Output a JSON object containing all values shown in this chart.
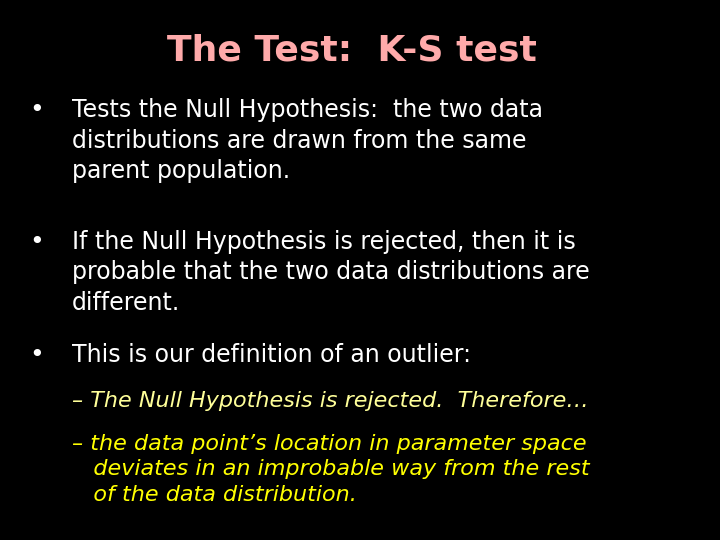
{
  "title": "The Test:  K-S test",
  "title_color": "#ffaaaa",
  "background_color": "#000000",
  "bullet_color": "#ffffff",
  "sub_italic_color1": "#ffff99",
  "sub_italic_color2": "#ffff00",
  "bullet1": "Tests the Null Hypothesis:  the two data\ndistributions are drawn from the same\nparent population.",
  "bullet2": "If the Null Hypothesis is rejected, then it is\nprobable that the two data distributions are\ndifferent.",
  "bullet3": "This is our definition of an outlier:",
  "dash1": "– The Null Hypothesis is rejected.  Therefore…",
  "dash2_line1": "– the data point’s location in parameter space",
  "dash2_line2": "   deviates in an improbable way from the rest",
  "dash2_line3": "   of the data distribution.",
  "title_fontsize": 26,
  "body_fontsize": 17,
  "sub_fontsize": 16
}
